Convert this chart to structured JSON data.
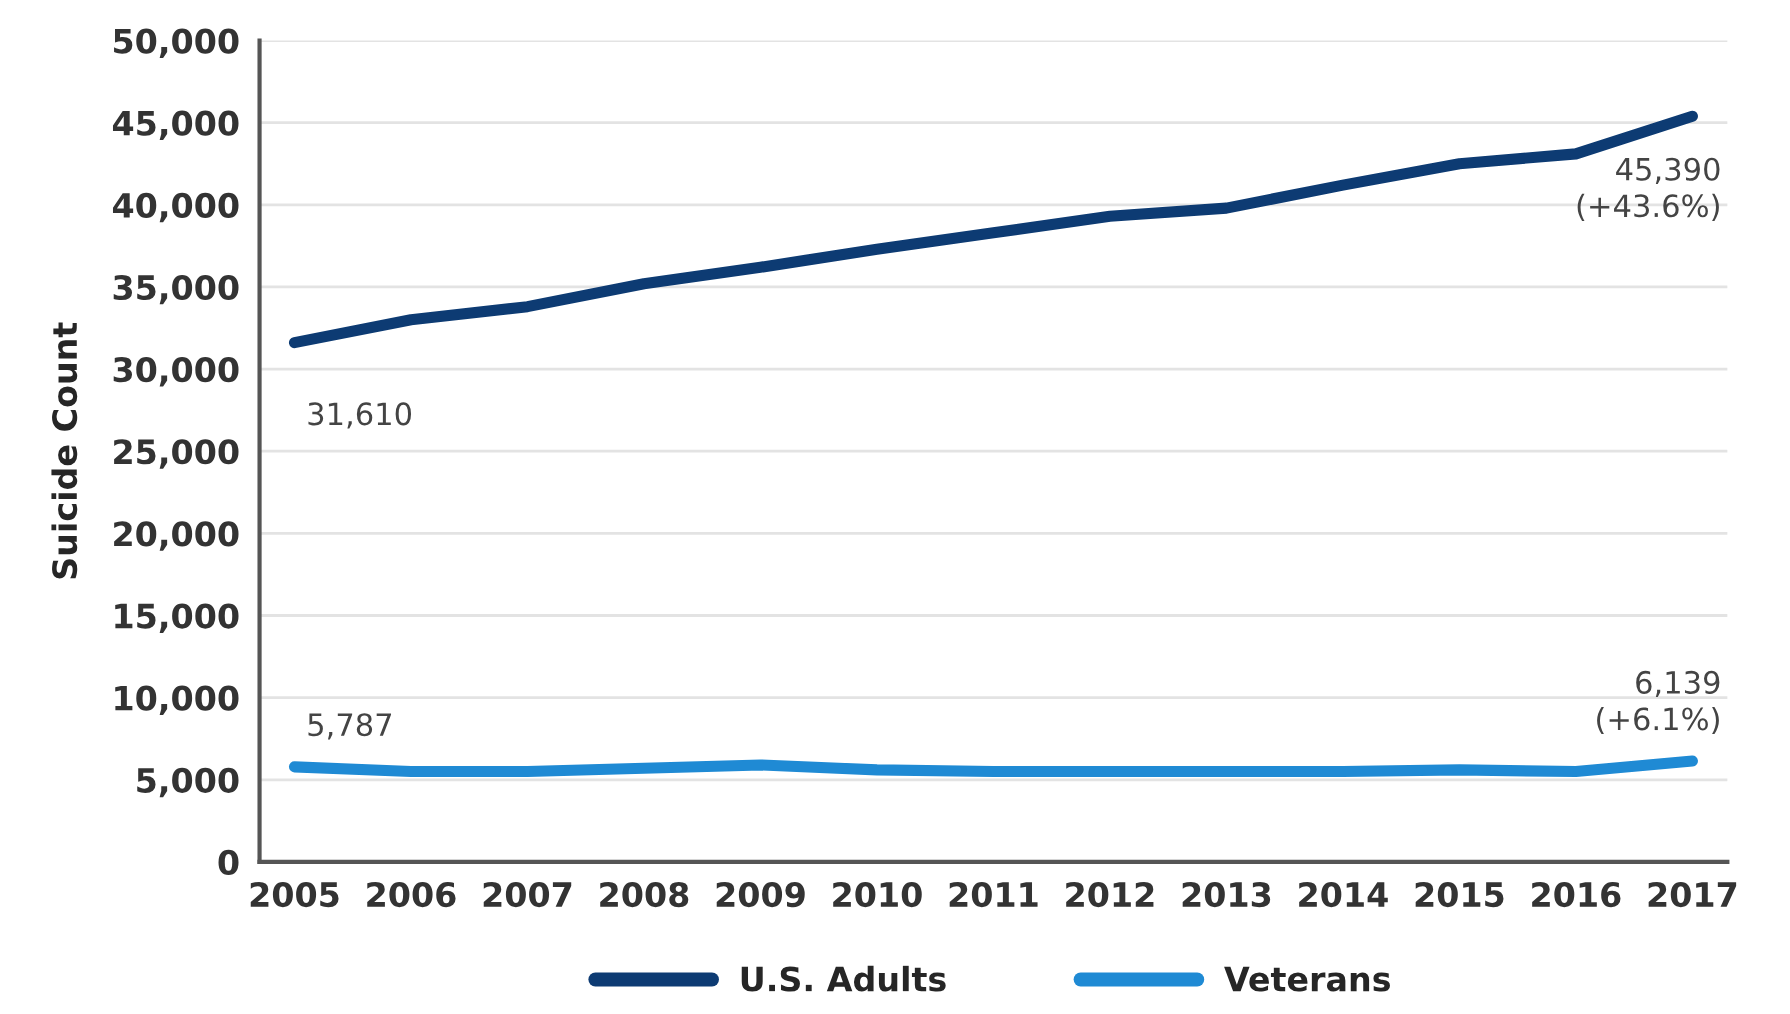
{
  "chart_data": {
    "type": "line",
    "ylabel": "Suicide Count",
    "categories": [
      "2005",
      "2006",
      "2007",
      "2008",
      "2009",
      "2010",
      "2011",
      "2012",
      "2013",
      "2014",
      "2015",
      "2016",
      "2017"
    ],
    "series": [
      {
        "name": "U.S. Adults",
        "color": "#0d3b73",
        "values": [
          31610,
          33000,
          33800,
          35200,
          36200,
          37300,
          38300,
          39300,
          39800,
          41200,
          42500,
          43100,
          45390
        ]
      },
      {
        "name": "Veterans",
        "color": "#1f8ad4",
        "values": [
          5787,
          5500,
          5500,
          5700,
          5900,
          5600,
          5500,
          5500,
          5500,
          5500,
          5600,
          5500,
          6139
        ]
      }
    ],
    "ylim": [
      0,
      50000
    ],
    "yticks": [
      {
        "value": 0,
        "label": "0"
      },
      {
        "value": 5000,
        "label": "5,000"
      },
      {
        "value": 10000,
        "label": "10,000"
      },
      {
        "value": 15000,
        "label": "15,000"
      },
      {
        "value": 20000,
        "label": "20,000"
      },
      {
        "value": 25000,
        "label": "25,000"
      },
      {
        "value": 30000,
        "label": "30,000"
      },
      {
        "value": 35000,
        "label": "35,000"
      },
      {
        "value": 40000,
        "label": "40,000"
      },
      {
        "value": 45000,
        "label": "45,000"
      },
      {
        "value": 50000,
        "label": "50,000"
      }
    ],
    "annotations": [
      {
        "text": "31,610",
        "x": "2005",
        "y": 31610
      },
      {
        "text": "45,390\n(+43.6%)",
        "x": "2017",
        "y": 45390
      },
      {
        "text": "5,787",
        "x": "2005",
        "y": 5787
      },
      {
        "text": "6,139\n(+6.1%)",
        "x": "2017",
        "y": 6139
      }
    ],
    "grid": "y",
    "legend": "bottom",
    "marker": "none",
    "line_style": "solid"
  }
}
